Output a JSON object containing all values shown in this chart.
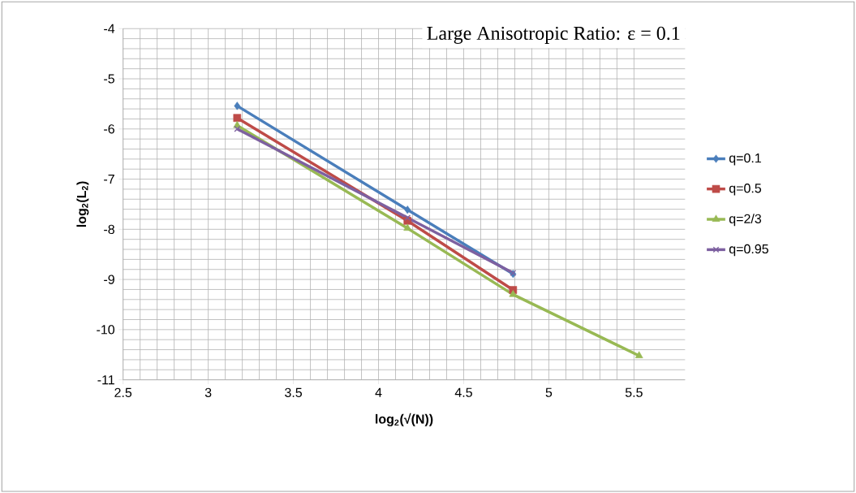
{
  "chart_data": {
    "type": "line",
    "title": "Large Anisotropic Ratio: ε = 0.1",
    "xlabel": "log$_{2}$(√(N))",
    "ylabel": "log$_{2}$(L$_{2}$)",
    "xlim": [
      2.5,
      5.8
    ],
    "xticks": [
      2.5,
      3,
      3.5,
      4,
      4.5,
      5,
      5.5
    ],
    "ylim": [
      -11,
      -4
    ],
    "yticks": [
      -11,
      -10,
      -9,
      -8,
      -7,
      -6,
      -5,
      -4
    ],
    "grid": true,
    "legend": "right",
    "line_style": "solid",
    "series": [
      {
        "name": "q=0.1",
        "color": "#4a7ebb",
        "marker": "diamond",
        "x": [
          3.17,
          4.17,
          4.79
        ],
        "values": [
          -5.54,
          -7.61,
          -8.89
        ]
      },
      {
        "name": "q=0.5",
        "color": "#be4b48",
        "marker": "square",
        "x": [
          3.17,
          4.17,
          4.79
        ],
        "values": [
          -5.78,
          -7.83,
          -9.21
        ]
      },
      {
        "name": "q=2/3",
        "color": "#98b954",
        "marker": "triangle",
        "x": [
          3.17,
          4.17,
          4.79,
          5.53
        ],
        "values": [
          -5.93,
          -7.98,
          -9.3,
          -10.52
        ]
      },
      {
        "name": "q=0.95",
        "color": "#7d60a0",
        "marker": "cross",
        "x": [
          3.17,
          4.17,
          4.79
        ],
        "values": [
          -6.0,
          -7.77,
          -8.87
        ]
      }
    ]
  }
}
